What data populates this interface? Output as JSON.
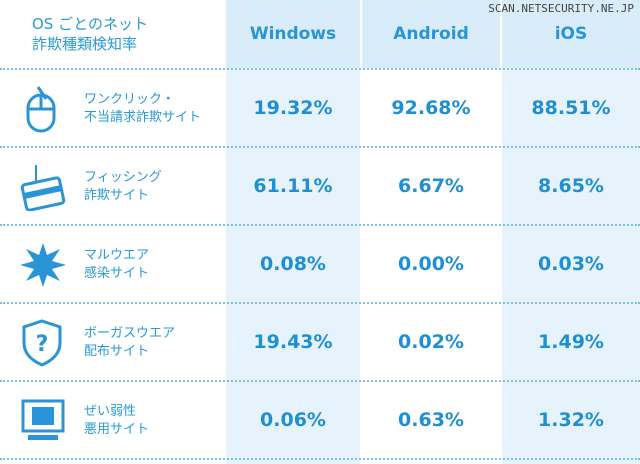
{
  "header": {
    "title": [
      "OS ごとのネット",
      "詐欺種類検知率"
    ],
    "watermark": "SCAN.NETSECURITY.NE.JP",
    "columns": [
      "Windows",
      "Android",
      "iOS"
    ]
  },
  "table": {
    "rows": [
      {
        "label": [
          "ワンクリック・",
          "不当請求詐欺サイト"
        ],
        "values": [
          "19.32%",
          "92.68%",
          "88.51%"
        ]
      },
      {
        "label": [
          "フィッシング",
          "詐欺サイト"
        ],
        "values": [
          "61.11%",
          "6.67%",
          "8.65%"
        ]
      },
      {
        "label": [
          "マルウエア",
          "感染サイト"
        ],
        "values": [
          "0.08%",
          "0.00%",
          "0.03%"
        ]
      },
      {
        "label": [
          "ボーガスウエア",
          "配布サイト"
        ],
        "values": [
          "19.43%",
          "0.02%",
          "1.49%"
        ]
      },
      {
        "label": [
          "ぜい弱性",
          "悪用サイト"
        ],
        "values": [
          "0.06%",
          "0.63%",
          "1.32%"
        ]
      }
    ]
  }
}
